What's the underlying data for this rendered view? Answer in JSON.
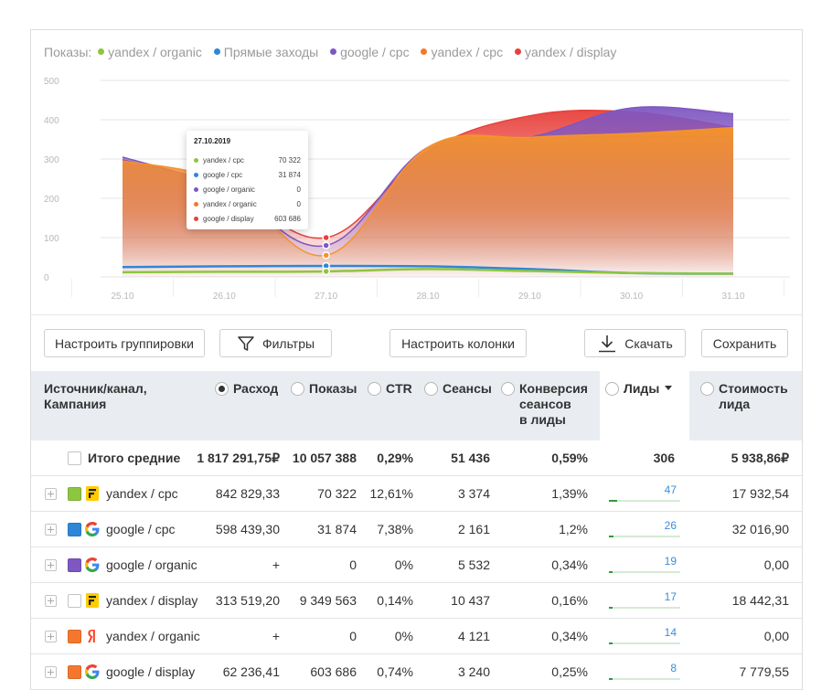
{
  "legend": {
    "prefix": "Показы:",
    "items": [
      {
        "label": "yandex / organic",
        "color": "#8dc63f"
      },
      {
        "label": "Прямые заходы",
        "color": "#2f86d9"
      },
      {
        "label": "google / cpc",
        "color": "#7e57c2"
      },
      {
        "label": "yandex / cpc",
        "color": "#f5772e"
      },
      {
        "label": "yandex / display",
        "color": "#e8403b"
      }
    ]
  },
  "chart_data": {
    "type": "area",
    "title": "",
    "xlabel": "",
    "ylabel": "",
    "ylim": [
      0,
      500
    ],
    "yticks": [
      "0",
      "100",
      "200",
      "300",
      "400",
      "500"
    ],
    "categories": [
      "25.10",
      "26.10",
      "27.10",
      "28.10",
      "29.10",
      "30.10",
      "31.10"
    ],
    "grid": true,
    "legend": "top-left",
    "series": [
      {
        "name": "yandex / display",
        "color": "#e8403b",
        "values": [
          298,
          230,
          100,
          320,
          410,
          420,
          380
        ]
      },
      {
        "name": "google / cpc",
        "color": "#7e57c2",
        "values": [
          305,
          225,
          80,
          330,
          355,
          430,
          415
        ]
      },
      {
        "name": "yandex / cpc",
        "color": "#f5932a",
        "values": [
          295,
          240,
          55,
          330,
          355,
          365,
          380
        ]
      },
      {
        "name": "Прямые заходы",
        "color": "#2f86d9",
        "values": [
          25,
          27,
          28,
          27,
          20,
          10,
          8
        ]
      },
      {
        "name": "yandex / organic",
        "color": "#8dc63f",
        "values": [
          12,
          13,
          14,
          20,
          15,
          10,
          8
        ]
      }
    ]
  },
  "tooltip": {
    "date": "27.10.2019",
    "rows": [
      {
        "name": "yandex / cpc",
        "value": "70 322",
        "color": "#8dc63f"
      },
      {
        "name": "google / cpc",
        "value": "31 874",
        "color": "#2f86d9"
      },
      {
        "name": "google / organic",
        "value": "0",
        "color": "#7e57c2"
      },
      {
        "name": "yandex / organic",
        "value": "0",
        "color": "#f5772e"
      },
      {
        "name": "google / display",
        "value": "603 686",
        "color": "#e8403b"
      }
    ]
  },
  "toolbar": {
    "grouping": "Настроить группировки",
    "filters": "Фильтры",
    "columns": "Настроить колонки",
    "download": "Скачать",
    "save": "Сохранить"
  },
  "table": {
    "headers": {
      "source": [
        "Источник/канал,",
        "Кампания"
      ],
      "spend": "Расход",
      "impressions": "Показы",
      "ctr": "CTR",
      "sessions": "Сеансы",
      "conversion": [
        "Конверсия",
        "сеансов",
        "в лиды"
      ],
      "leads": "Лиды",
      "cost": [
        "Стоимость",
        "лида"
      ]
    },
    "total": {
      "label": "Итого средние",
      "spend": "1 817 291,75₽",
      "impressions": "10 057 388",
      "ctr": "0,29%",
      "sessions": "51 436",
      "conversion": "0,59%",
      "leads": "306",
      "cost": "5 938,86₽"
    },
    "rows": [
      {
        "name": "yandex / cpc",
        "color": "#8dc63f",
        "icon": "yandex-direct-icon",
        "spend": "842 829,33",
        "impressions": "70 322",
        "ctr": "12,61%",
        "sessions": "3 374",
        "conversion": "1,39%",
        "leads": "47",
        "leads_frac": 0.47,
        "cost": "17 932,54"
      },
      {
        "name": "google / cpc",
        "color": "#2f86d9",
        "icon": "google-icon",
        "spend": "598 439,30",
        "impressions": "31 874",
        "ctr": "7,38%",
        "sessions": "2 161",
        "conversion": "1,2%",
        "leads": "26",
        "leads_frac": 0.26,
        "cost": "32 016,90"
      },
      {
        "name": "google / organic",
        "color": "#7e57c2",
        "icon": "google-icon",
        "spend": "+",
        "impressions": "0",
        "ctr": "0%",
        "sessions": "5 532",
        "conversion": "0,34%",
        "leads": "19",
        "leads_frac": 0.19,
        "cost": "0,00"
      },
      {
        "name": "yandex / display",
        "color": "#ffffff",
        "icon": "yandex-direct-icon",
        "spend": "313 519,20",
        "impressions": "9 349 563",
        "ctr": "0,14%",
        "sessions": "10 437",
        "conversion": "0,16%",
        "leads": "17",
        "leads_frac": 0.17,
        "cost": "18 442,31"
      },
      {
        "name": "yandex / organic",
        "color": "#f5772e",
        "icon": "yandex-icon",
        "spend": "+",
        "impressions": "0",
        "ctr": "0%",
        "sessions": "4 121",
        "conversion": "0,34%",
        "leads": "14",
        "leads_frac": 0.14,
        "cost": "0,00"
      },
      {
        "name": "google / display",
        "color": "#f5772e",
        "icon": "google-icon",
        "spend": "62 236,41",
        "impressions": "603 686",
        "ctr": "0,74%",
        "sessions": "3 240",
        "conversion": "0,25%",
        "leads": "8",
        "leads_frac": 0.08,
        "cost": "7 779,55"
      }
    ]
  }
}
